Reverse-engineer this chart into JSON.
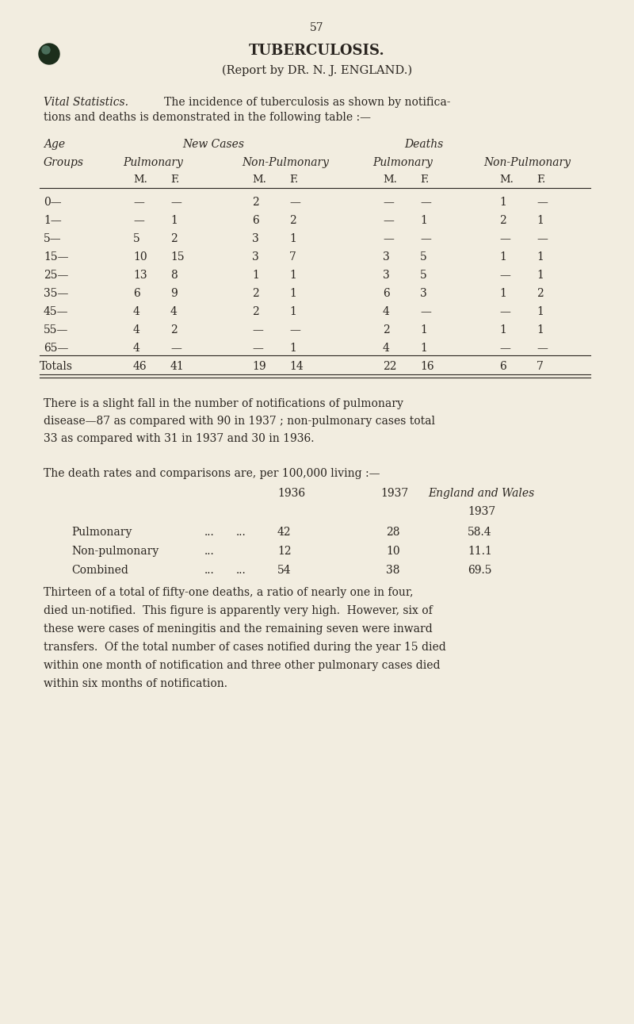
{
  "bg_color": "#f2ede0",
  "text_color": "#2a2520",
  "page_number": "57",
  "title": "TUBERCULOSIS.",
  "subtitle": "(Report by DR. N. J. ENGLAND.)",
  "table_rows": [
    [
      "0—",
      "—",
      "—",
      "2",
      "—",
      "—",
      "—",
      "1",
      "—"
    ],
    [
      "1—",
      "—",
      "1",
      "6",
      "2",
      "—",
      "1",
      "2",
      "1"
    ],
    [
      "5—",
      "5",
      "2",
      "3",
      "1",
      "—",
      "—",
      "—",
      "—"
    ],
    [
      "15—",
      "10",
      "15",
      "3",
      "7",
      "3",
      "5",
      "1",
      "1"
    ],
    [
      "25—",
      "13",
      "8",
      "1",
      "1",
      "3",
      "5",
      "—",
      "1"
    ],
    [
      "35—",
      "6",
      "9",
      "2",
      "1",
      "6",
      "3",
      "1",
      "2"
    ],
    [
      "45—",
      "4",
      "4",
      "2",
      "1",
      "4",
      "—",
      "—",
      "1"
    ],
    [
      "55—",
      "4",
      "2",
      "—",
      "—",
      "2",
      "1",
      "1",
      "1"
    ],
    [
      "65—",
      "4",
      "—",
      "—",
      "1",
      "4",
      "1",
      "—",
      "—"
    ]
  ],
  "table_totals": [
    "Totals",
    "46",
    "41",
    "19",
    "14",
    "22",
    "16",
    "6",
    "7"
  ],
  "para1_line1": "There is a slight fall in the number of notifications of pulmonary",
  "para1_line2": "disease—87 as compared with 90 in 1937 ; non-pulmonary cases total",
  "para1_line3": "33 as compared with 31 in 1937 and 30 in 1936.",
  "death_rates_intro": "The death rates and comparisons are, per 100,000 living :—",
  "para2_lines": [
    "Thirteen of a total of fifty-one deaths, a ratio of nearly one in four,",
    "died un-notified.  This figure is apparently very high.  However, six of",
    "these were cases of meningitis and the remaining seven were inward",
    "transfers.  Of the total number of cases notified during the year 15 died",
    "within one month of notification and three other pulmonary cases died",
    "within six months of notification."
  ]
}
